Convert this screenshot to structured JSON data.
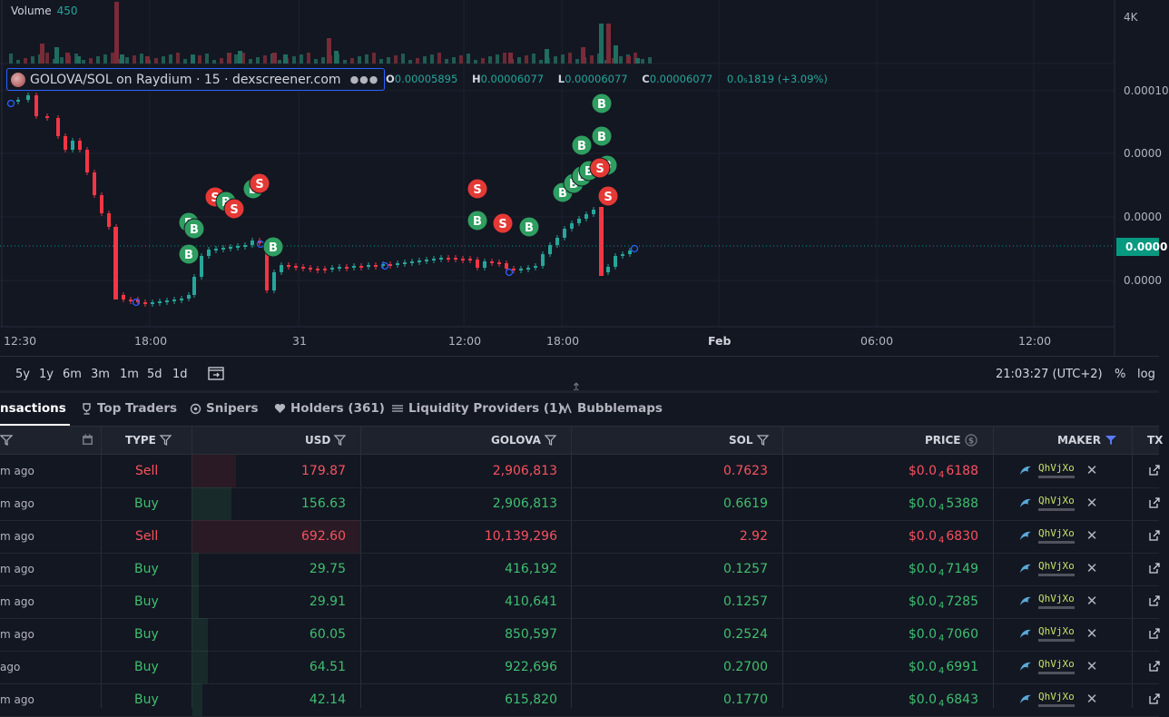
{
  "chart": {
    "volume_label": "Volume",
    "volume_value": "450",
    "pair_title": "GOLOVA/SOL on Raydium · 15 · dexscreener.com",
    "ohlc": {
      "o_key": "O",
      "o": "0.00005895",
      "h_key": "H",
      "h": "0.00006077",
      "l_key": "L",
      "l": "0.00006077",
      "c_key": "C",
      "c": "0.00006077",
      "change": "0.0₅1819 (+3.09%)"
    },
    "y_ticks": [
      "4K",
      "0.00010",
      "0.0000",
      "0.0000",
      "0.0000"
    ],
    "current_price": "0.0000",
    "x_ticks": [
      "12:30",
      "18:00",
      "31",
      "12:00",
      "18:00",
      "Feb",
      "06:00",
      "12:00"
    ],
    "timeframes": [
      "5y",
      "1y",
      "6m",
      "3m",
      "1m",
      "5d",
      "1d"
    ],
    "clock": "21:03:27 (UTC+2)",
    "percent_label": "%",
    "log_label": "log",
    "buy_marker": "B",
    "sell_marker": "S",
    "colors": {
      "up": "#26a69a",
      "down": "#f23645",
      "buy": "#2f9e61",
      "sell": "#e53935",
      "bg": "#131722"
    }
  },
  "tabs": [
    {
      "label": "nsactions",
      "icon": "list-icon"
    },
    {
      "label": "Top Traders",
      "icon": "trophy-icon"
    },
    {
      "label": "Snipers",
      "icon": "crosshair-icon"
    },
    {
      "label": "Holders (361)",
      "icon": "heart-icon"
    },
    {
      "label": "Liquidity Providers (1)",
      "icon": "layers-icon"
    },
    {
      "label": "Bubblemaps",
      "icon": "bubblemaps-icon"
    }
  ],
  "table": {
    "headers": {
      "type": "TYPE",
      "usd": "USD",
      "golova": "GOLOVA",
      "sol": "SOL",
      "price": "PRICE",
      "maker": "MAKER",
      "txn": "TX"
    },
    "rows": [
      {
        "ago": "m  ago",
        "type": "Sell",
        "usd": "179.87",
        "golova": "2,906,813",
        "sol": "0.7623",
        "price_a": "$0.0",
        "price_sub": "4",
        "price_b": "6188",
        "maker": "QhVjXo",
        "bar": 0.26
      },
      {
        "ago": "m  ago",
        "type": "Buy",
        "usd": "156.63",
        "golova": "2,906,813",
        "sol": "0.6619",
        "price_a": "$0.0",
        "price_sub": "4",
        "price_b": "5388",
        "maker": "QhVjXo",
        "bar": 0.23
      },
      {
        "ago": "m  ago",
        "type": "Sell",
        "usd": "692.60",
        "golova": "10,139,296",
        "sol": "2.92",
        "price_a": "$0.0",
        "price_sub": "4",
        "price_b": "6830",
        "maker": "QhVjXo",
        "bar": 1.0
      },
      {
        "ago": "m  ago",
        "type": "Buy",
        "usd": "29.75",
        "golova": "416,192",
        "sol": "0.1257",
        "price_a": "$0.0",
        "price_sub": "4",
        "price_b": "7149",
        "maker": "QhVjXo",
        "bar": 0.04
      },
      {
        "ago": "m  ago",
        "type": "Buy",
        "usd": "29.91",
        "golova": "410,641",
        "sol": "0.1257",
        "price_a": "$0.0",
        "price_sub": "4",
        "price_b": "7285",
        "maker": "QhVjXo",
        "bar": 0.04
      },
      {
        "ago": "m  ago",
        "type": "Buy",
        "usd": "60.05",
        "golova": "850,597",
        "sol": "0.2524",
        "price_a": "$0.0",
        "price_sub": "4",
        "price_b": "7060",
        "maker": "QhVjXo",
        "bar": 0.09
      },
      {
        "ago": "  ago",
        "type": "Buy",
        "usd": "64.51",
        "golova": "922,696",
        "sol": "0.2700",
        "price_a": "$0.0",
        "price_sub": "4",
        "price_b": "6991",
        "maker": "QhVjXo",
        "bar": 0.09
      },
      {
        "ago": "m  ago",
        "type": "Buy",
        "usd": "42.14",
        "golova": "615,820",
        "sol": "0.1770",
        "price_a": "$0.0",
        "price_sub": "4",
        "price_b": "6843",
        "maker": "QhVjXo",
        "bar": 0.06
      }
    ]
  }
}
